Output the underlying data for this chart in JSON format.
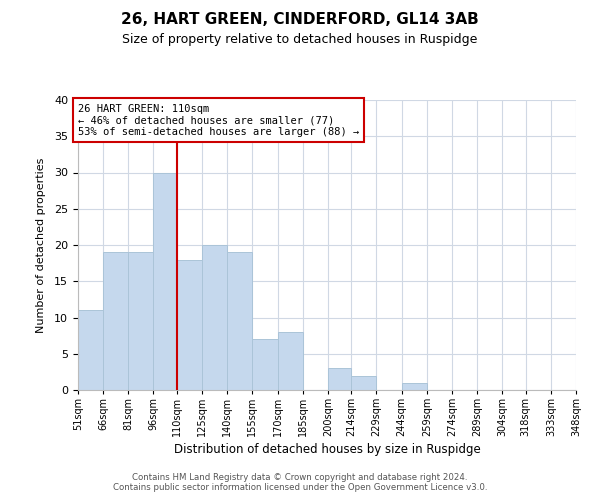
{
  "title": "26, HART GREEN, CINDERFORD, GL14 3AB",
  "subtitle": "Size of property relative to detached houses in Ruspidge",
  "xlabel": "Distribution of detached houses by size in Ruspidge",
  "ylabel": "Number of detached properties",
  "bin_labels": [
    "51sqm",
    "66sqm",
    "81sqm",
    "96sqm",
    "110sqm",
    "125sqm",
    "140sqm",
    "155sqm",
    "170sqm",
    "185sqm",
    "200sqm",
    "214sqm",
    "229sqm",
    "244sqm",
    "259sqm",
    "274sqm",
    "289sqm",
    "304sqm",
    "318sqm",
    "333sqm",
    "348sqm"
  ],
  "bar_values": [
    11,
    19,
    19,
    30,
    18,
    20,
    19,
    7,
    8,
    0,
    3,
    2,
    0,
    1,
    0,
    0,
    0,
    0,
    0,
    0
  ],
  "bar_left_edges": [
    51,
    66,
    81,
    96,
    110,
    125,
    140,
    155,
    170,
    185,
    200,
    214,
    229,
    244,
    259,
    274,
    289,
    304,
    318,
    333
  ],
  "bin_widths": [
    15,
    15,
    15,
    14,
    15,
    15,
    15,
    15,
    15,
    15,
    14,
    15,
    15,
    15,
    15,
    15,
    15,
    14,
    15,
    15
  ],
  "bar_color": "#c5d8ed",
  "bar_edge_color": "#abc4d8",
  "property_line_x": 110,
  "property_line_color": "#cc0000",
  "annotation_line1": "26 HART GREEN: 110sqm",
  "annotation_line2": "← 46% of detached houses are smaller (77)",
  "annotation_line3": "53% of semi-detached houses are larger (88) →",
  "annotation_box_color": "#ffffff",
  "annotation_box_edge": "#cc0000",
  "ylim": [
    0,
    40
  ],
  "yticks": [
    0,
    5,
    10,
    15,
    20,
    25,
    30,
    35,
    40
  ],
  "grid_color": "#d0d8e4",
  "footer_line1": "Contains HM Land Registry data © Crown copyright and database right 2024.",
  "footer_line2": "Contains public sector information licensed under the Open Government Licence v3.0.",
  "background_color": "#ffffff"
}
